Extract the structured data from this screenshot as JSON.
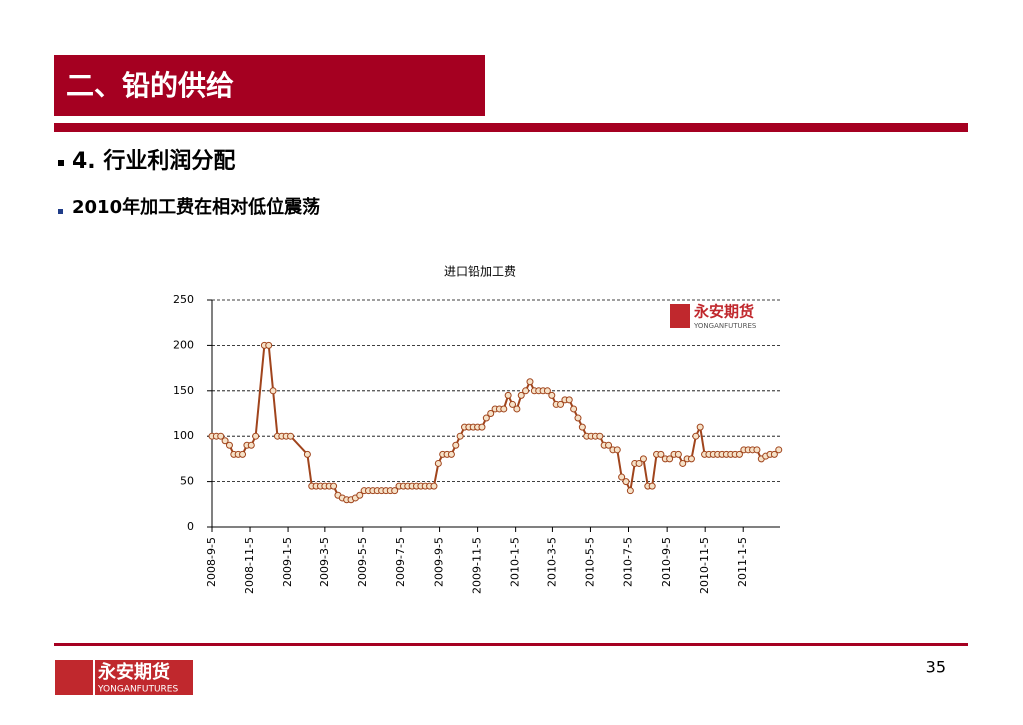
{
  "header": {
    "title": "二、铅的供给"
  },
  "bullets": [
    "4. 行业利润分配",
    "2010年加工费在相对低位震荡"
  ],
  "logo": {
    "name": "永安期货",
    "subtitle": "YONGANFUTURES"
  },
  "page_number": "35",
  "chart_data": {
    "type": "line",
    "title": "进口铅加工费",
    "x": [
      "2008-9-5",
      "2008-9-12",
      "2008-9-19",
      "2008-9-26",
      "2008-10-3",
      "2008-10-10",
      "2008-10-17",
      "2008-10-24",
      "2008-10-31",
      "2008-11-7",
      "2008-11-14",
      "2008-11-28",
      "2008-12-5",
      "2008-12-12",
      "2008-12-19",
      "2008-12-26",
      "2009-1-2",
      "2009-1-9",
      "2009-2-5",
      "2009-2-12",
      "2009-2-19",
      "2009-2-26",
      "2009-3-5",
      "2009-3-12",
      "2009-3-19",
      "2009-3-26",
      "2009-4-2",
      "2009-4-9",
      "2009-4-16",
      "2009-4-23",
      "2009-4-30",
      "2009-5-7",
      "2009-5-14",
      "2009-5-21",
      "2009-5-28",
      "2009-6-4",
      "2009-6-11",
      "2009-6-18",
      "2009-6-25",
      "2009-7-2",
      "2009-7-9",
      "2009-7-16",
      "2009-7-23",
      "2009-7-30",
      "2009-8-6",
      "2009-8-13",
      "2009-8-20",
      "2009-8-27",
      "2009-9-3",
      "2009-9-10",
      "2009-9-17",
      "2009-9-24",
      "2009-10-1",
      "2009-10-8",
      "2009-10-15",
      "2009-10-22",
      "2009-10-29",
      "2009-11-5",
      "2009-11-12",
      "2009-11-19",
      "2009-11-26",
      "2009-12-3",
      "2009-12-10",
      "2009-12-17",
      "2009-12-24",
      "2009-12-31",
      "2010-1-7",
      "2010-1-14",
      "2010-1-21",
      "2010-1-28",
      "2010-2-4",
      "2010-2-11",
      "2010-2-18",
      "2010-2-25",
      "2010-3-4",
      "2010-3-11",
      "2010-3-18",
      "2010-3-25",
      "2010-4-1",
      "2010-4-8",
      "2010-4-15",
      "2010-4-22",
      "2010-4-29",
      "2010-5-6",
      "2010-5-13",
      "2010-5-20",
      "2010-5-27",
      "2010-6-3",
      "2010-6-10",
      "2010-6-17",
      "2010-6-24",
      "2010-7-1",
      "2010-7-8",
      "2010-7-15",
      "2010-7-22",
      "2010-7-29",
      "2010-8-5",
      "2010-8-12",
      "2010-8-19",
      "2010-8-26",
      "2010-9-2",
      "2010-9-9",
      "2010-9-16",
      "2010-9-23",
      "2010-9-30",
      "2010-10-7",
      "2010-10-14",
      "2010-10-21",
      "2010-10-28",
      "2010-11-4",
      "2010-11-11",
      "2010-11-18",
      "2010-11-25",
      "2010-12-2",
      "2010-12-9",
      "2010-12-16",
      "2010-12-23",
      "2010-12-30",
      "2011-1-6",
      "2011-1-13",
      "2011-1-20",
      "2011-1-27",
      "2011-2-3",
      "2011-2-10",
      "2011-2-17",
      "2011-2-24",
      "2011-3-3"
    ],
    "series": [
      {
        "color": "#a0441c",
        "values": [
          100,
          100,
          100,
          95,
          90,
          80,
          80,
          80,
          90,
          90,
          100,
          200,
          200,
          150,
          100,
          100,
          100,
          100,
          80,
          45,
          45,
          45,
          45,
          45,
          45,
          35,
          32,
          30,
          30,
          32,
          35,
          40,
          40,
          40,
          40,
          40,
          40,
          40,
          40,
          45,
          45,
          45,
          45,
          45,
          45,
          45,
          45,
          45,
          70,
          80,
          80,
          80,
          90,
          100,
          110,
          110,
          110,
          110,
          110,
          120,
          125,
          130,
          130,
          130,
          145,
          135,
          130,
          145,
          150,
          160,
          150,
          150,
          150,
          150,
          145,
          135,
          135,
          140,
          140,
          130,
          120,
          110,
          100,
          100,
          100,
          100,
          90,
          90,
          85,
          85,
          55,
          50,
          40,
          70,
          70,
          75,
          45,
          45,
          80,
          80,
          75,
          75,
          80,
          80,
          70,
          75,
          75,
          100,
          110,
          80,
          80,
          80,
          80,
          80,
          80,
          80,
          80,
          80,
          85,
          85,
          85,
          85,
          75,
          78,
          80,
          80,
          85
        ]
      }
    ],
    "xlim": [
      "2008-9-5",
      "2011-3-5"
    ],
    "xticks": [
      "2008-9-5",
      "2008-11-5",
      "2009-1-5",
      "2009-3-5",
      "2009-5-5",
      "2009-7-5",
      "2009-9-5",
      "2009-11-5",
      "2010-1-5",
      "2010-3-5",
      "2010-5-5",
      "2010-7-5",
      "2010-9-5",
      "2010-11-5",
      "2011-1-5"
    ],
    "ylim": [
      0,
      250
    ],
    "yticks": [
      0,
      50,
      100,
      150,
      200,
      250
    ],
    "grid": true
  }
}
